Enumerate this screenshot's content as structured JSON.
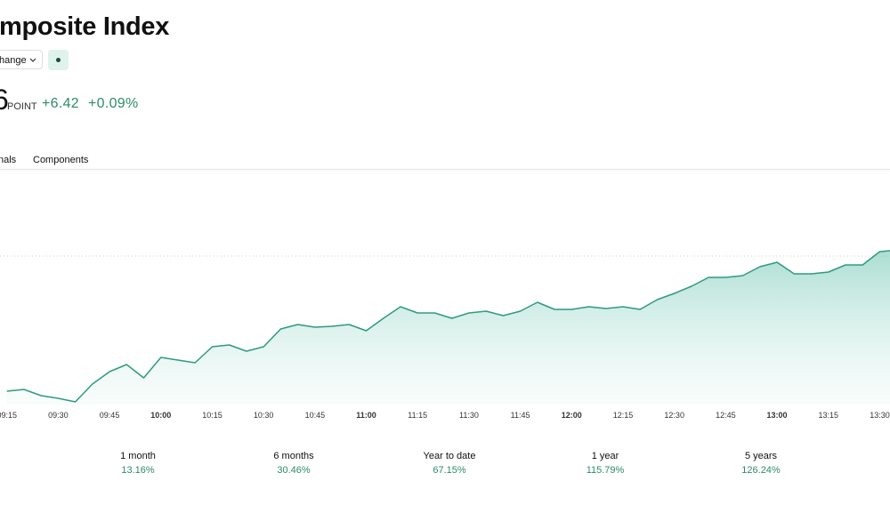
{
  "header": {
    "title": "mposite Index",
    "dropdown": "hange",
    "price": "6",
    "unit": "POINT",
    "change": "+6.42",
    "change_percent": "+0.09%"
  },
  "tabs": [
    "nals",
    "Components"
  ],
  "chart_data": {
    "type": "area",
    "color": "#2f9a80",
    "x": [
      "09:15",
      "09:20",
      "09:25",
      "09:30",
      "09:35",
      "09:40",
      "09:45",
      "09:50",
      "09:55",
      "10:00",
      "10:05",
      "10:10",
      "10:15",
      "10:20",
      "10:25",
      "10:30",
      "10:35",
      "10:40",
      "10:45",
      "10:50",
      "10:55",
      "11:00",
      "11:05",
      "11:10",
      "11:15",
      "11:20",
      "11:25",
      "11:30",
      "11:35",
      "11:40",
      "11:45",
      "11:50",
      "11:55",
      "12:00",
      "12:05",
      "12:10",
      "12:15",
      "12:20",
      "12:25",
      "12:30",
      "12:35",
      "12:40",
      "12:45",
      "12:50",
      "12:55",
      "13:00",
      "13:05",
      "13:10",
      "13:15",
      "13:20",
      "13:25",
      "13:30",
      "13:33"
    ],
    "series": [
      {
        "values": [
          15,
          17,
          10,
          7,
          3,
          23,
          37,
          45,
          30,
          53,
          50,
          47,
          65,
          67,
          60,
          65,
          85,
          90,
          87,
          88,
          90,
          83,
          97,
          110,
          103,
          103,
          97,
          103,
          105,
          100,
          105,
          115,
          107,
          107,
          110,
          108,
          110,
          107,
          118,
          125,
          133,
          143,
          143,
          145,
          155,
          160,
          147,
          147,
          149,
          157,
          157,
          172,
          173
        ]
      }
    ],
    "reference_line": 167,
    "xlim": [
      "09:13",
      "13:33"
    ],
    "ylim": [
      0,
      260
    ],
    "xticks": [
      "09:15",
      "09:30",
      "09:45",
      "10:00",
      "10:15",
      "10:30",
      "10:45",
      "11:00",
      "11:15",
      "11:30",
      "11:45",
      "12:00",
      "12:15",
      "12:30",
      "12:45",
      "13:00",
      "13:15",
      "13:30"
    ]
  },
  "returns": [
    {
      "period": "1 month",
      "value": "13.16%"
    },
    {
      "period": "6 months",
      "value": "30.46%"
    },
    {
      "period": "Year to date",
      "value": "67.15%"
    },
    {
      "period": "1 year",
      "value": "115.79%"
    },
    {
      "period": "5 years",
      "value": "126.24%"
    }
  ]
}
